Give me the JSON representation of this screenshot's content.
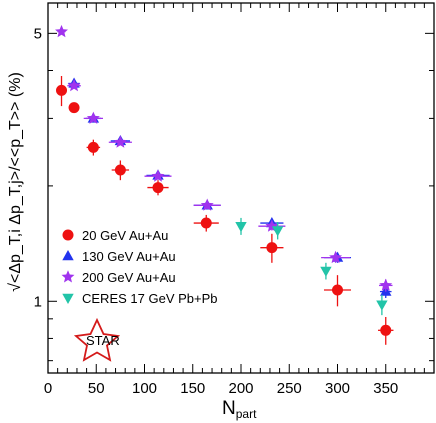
{
  "chart_data": {
    "type": "scatter",
    "xlabel": "N",
    "xlabel_sub": "part",
    "ylabel": "√<Δp_T,i Δp_T,j>/<<p_T>> (%)",
    "xlim": [
      0,
      400
    ],
    "ylim": [
      0.65,
      6.0
    ],
    "y_scale": "log",
    "x_ticks": [
      0,
      50,
      100,
      150,
      200,
      250,
      300,
      350
    ],
    "y_ticks": [
      1,
      5
    ],
    "legend_position": "left",
    "logo_text": "STAR",
    "series": [
      {
        "name": "20 GeV Au+Au",
        "marker": "circle",
        "color": "#ee1111",
        "x": [
          14,
          27,
          47,
          75,
          114,
          164,
          232,
          300,
          350
        ],
        "y": [
          3.55,
          3.2,
          2.52,
          2.2,
          1.98,
          1.6,
          1.38,
          1.07,
          0.84
        ],
        "xerr": [
          4,
          5,
          7,
          9,
          11,
          13,
          12,
          14,
          8
        ],
        "yerr": [
          0.32,
          0.1,
          0.12,
          0.13,
          0.09,
          0.08,
          0.12,
          0.1,
          0.07
        ]
      },
      {
        "name": "130 GeV Au+Au",
        "marker": "triangle",
        "color": "#2233ee",
        "x": [
          27,
          47,
          75,
          114,
          165,
          232,
          300,
          350
        ],
        "y": [
          3.7,
          3.0,
          2.62,
          2.13,
          1.78,
          1.6,
          1.3,
          1.06
        ],
        "xerr": [
          6,
          8,
          10,
          12,
          14,
          12,
          14,
          6
        ],
        "yerr": [
          0.05,
          0.04,
          0.04,
          0.04,
          0.04,
          0.04,
          0.04,
          0.04
        ]
      },
      {
        "name": "200 GeV Au+Au",
        "marker": "star",
        "color": "#a033ee",
        "x": [
          14,
          27,
          47,
          75,
          114,
          165,
          232,
          298,
          350
        ],
        "y": [
          5.05,
          3.65,
          3.0,
          2.6,
          2.12,
          1.78,
          1.57,
          1.3,
          1.1
        ],
        "xerr": [
          4,
          7,
          10,
          12,
          14,
          14,
          14,
          15,
          7
        ],
        "yerr": [
          0.05,
          0.05,
          0.05,
          0.04,
          0.04,
          0.04,
          0.04,
          0.04,
          0.04
        ]
      },
      {
        "name": "CERES 17 GeV Pb+Pb",
        "marker": "triangle-down",
        "color": "#22c4a8",
        "x": [
          200,
          238,
          288,
          346
        ],
        "y": [
          1.57,
          1.53,
          1.2,
          0.98
        ],
        "xerr": [
          0,
          0,
          0,
          0
        ],
        "yerr": [
          0.08,
          0.08,
          0.06,
          0.06
        ]
      }
    ]
  }
}
